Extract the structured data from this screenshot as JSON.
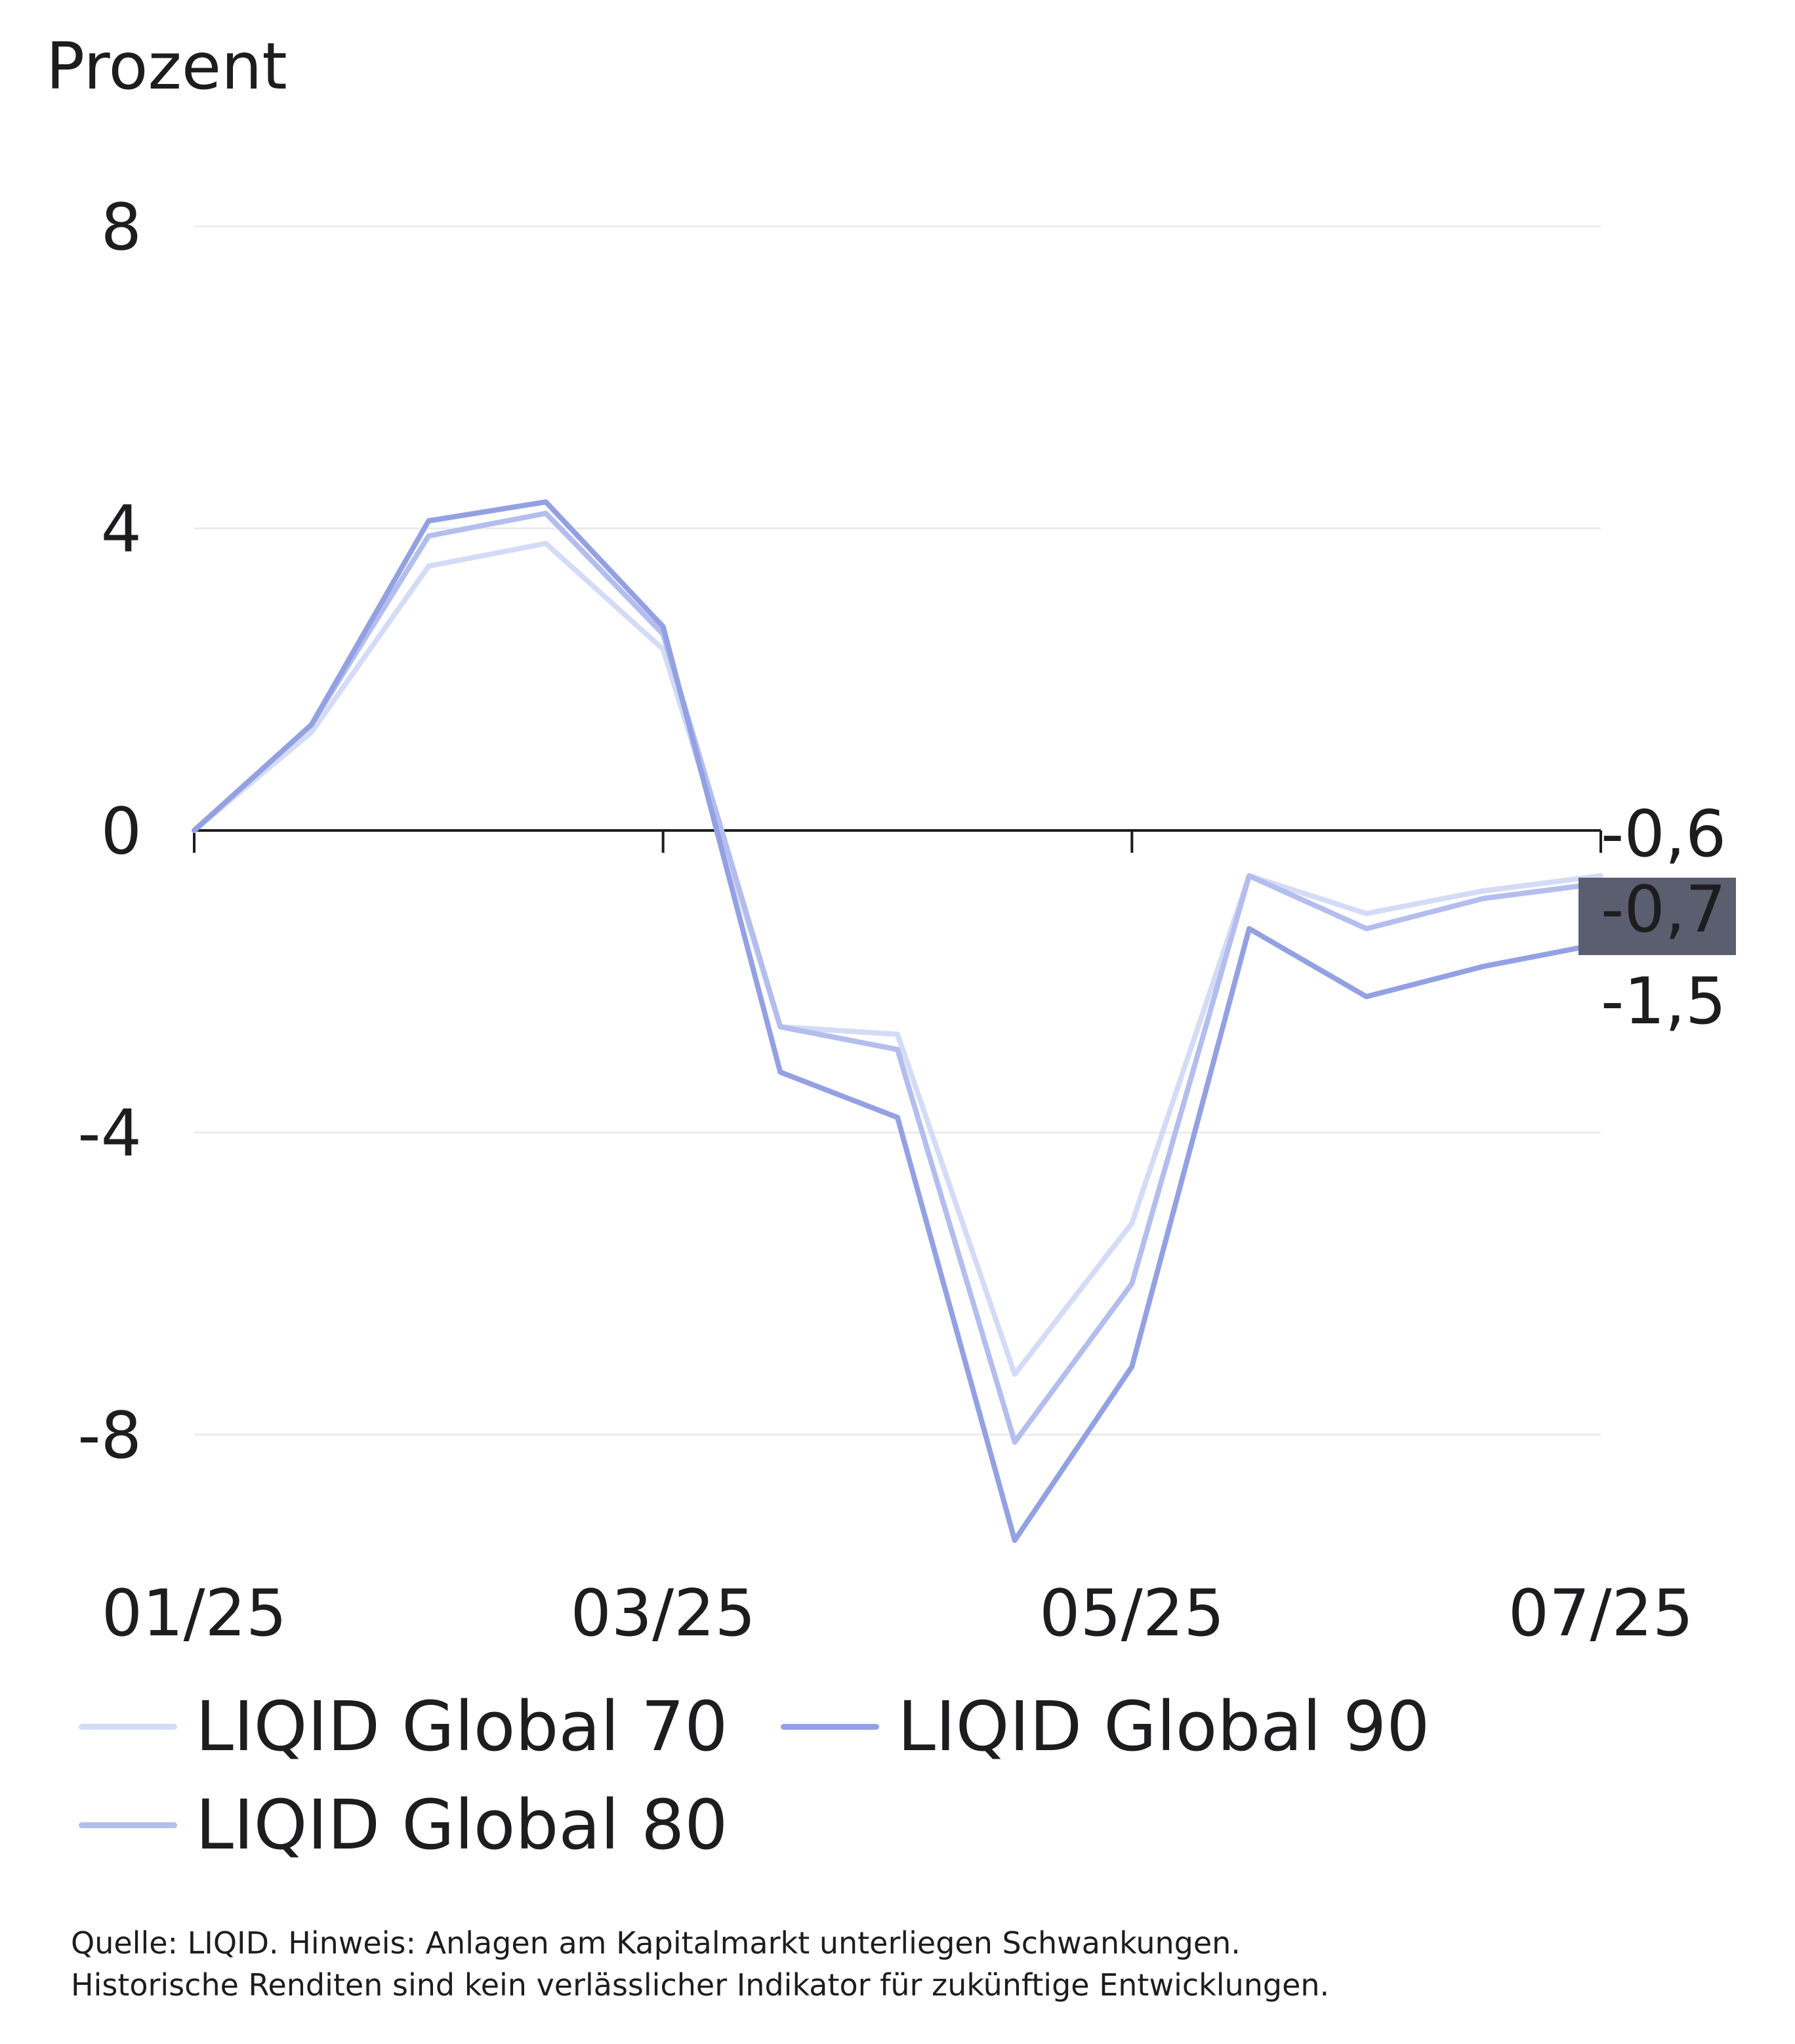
{
  "chart_data": {
    "type": "line",
    "title": "",
    "ylabel": "Prozent",
    "xlabel": "",
    "ylim": [
      -9.5,
      8.5
    ],
    "yticks": [
      8,
      4,
      0,
      -4,
      -8
    ],
    "ytick_labels": [
      "8",
      "4",
      "0",
      "-4",
      "-8"
    ],
    "x_tick_labels": [
      "01/25",
      "03/25",
      "05/25",
      "07/25"
    ],
    "x_tick_positions": [
      0,
      4,
      8,
      12
    ],
    "grid": true,
    "legend": "bottom",
    "series": [
      {
        "name": "LIQID Global 70",
        "color": "#d4dbf6",
        "values": [
          0,
          1.3,
          3.5,
          3.8,
          2.4,
          -2.6,
          -2.7,
          -7.2,
          -5.2,
          -0.6,
          -1.1,
          -0.8,
          -0.6
        ],
        "end_label": "-0,6",
        "highlight": false
      },
      {
        "name": "LIQID Global 80",
        "color": "#b3bdee",
        "values": [
          0,
          1.4,
          3.9,
          4.2,
          2.6,
          -2.6,
          -2.9,
          -8.1,
          -6.0,
          -0.6,
          -1.3,
          -0.9,
          -0.7
        ],
        "end_label": "-0,7",
        "highlight": true
      },
      {
        "name": "LIQID Global 90",
        "color": "#93a1e3",
        "values": [
          0,
          1.4,
          4.1,
          4.35,
          2.7,
          -3.2,
          -3.8,
          -9.4,
          -7.1,
          -1.3,
          -2.2,
          -1.8,
          -1.5
        ],
        "end_label": "-1,5",
        "highlight": false
      }
    ],
    "x_count": 13
  },
  "legend": {
    "items": [
      {
        "label": "LIQID Global 70",
        "color": "#d4dbf6"
      },
      {
        "label": "LIQID Global 90",
        "color": "#93a1e3"
      },
      {
        "label": "LIQID Global 80",
        "color": "#b3bdee"
      }
    ]
  },
  "footer": {
    "line1": "Quelle: LIQID. Hinweis: Anlagen am Kapitalmarkt unterliegen Schwankungen.",
    "line2": "Historische Renditen sind kein verlässlicher Indikator für zukünftige Entwicklungen."
  },
  "colors": {
    "highlight_box": "#5b5e6e",
    "axis": "#1d1d1f",
    "grid": "#ececee"
  }
}
